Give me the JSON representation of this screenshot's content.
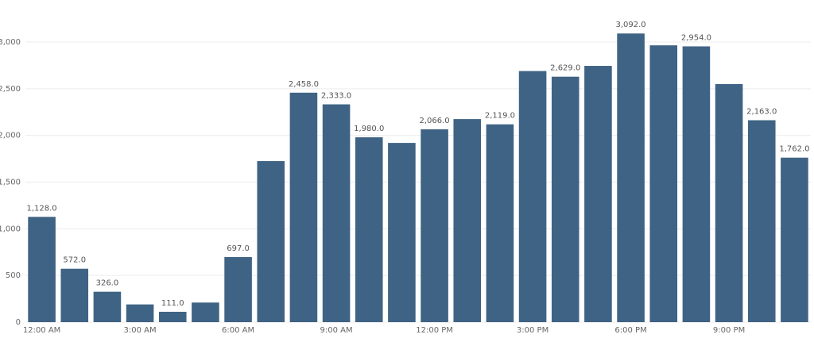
{
  "chart_data": {
    "type": "bar",
    "categories": [
      "12:00 AM",
      null,
      null,
      "3:00 AM",
      null,
      null,
      "6:00 AM",
      null,
      null,
      "9:00 AM",
      null,
      null,
      "12:00 PM",
      null,
      null,
      "3:00 PM",
      null,
      null,
      "6:00 PM",
      null,
      null,
      "9:00 PM",
      null,
      null
    ],
    "values": [
      1128,
      572,
      326,
      190,
      111,
      210,
      697,
      1725,
      2458,
      2333,
      1980,
      1920,
      2066,
      2175,
      2119,
      2690,
      2629,
      2745,
      3092,
      2965,
      2954,
      2550,
      2163,
      1762
    ],
    "value_labels": [
      "1,128.0",
      "572.0",
      "326.0",
      null,
      "111.0",
      null,
      "697.0",
      null,
      "2,458.0",
      "2,333.0",
      "1,980.0",
      null,
      "2,066.0",
      null,
      "2,119.0",
      null,
      "2,629.0",
      null,
      "3,092.0",
      null,
      "2,954.0",
      null,
      "2,163.0",
      "1,762.0"
    ],
    "color": "#3f6384",
    "ylim": [
      0,
      3200
    ],
    "yticks": [
      0,
      500,
      {
        "value": 1000,
        "label": "1,000"
      },
      {
        "value": 1500,
        "label": "1,500"
      },
      {
        "value": 2000,
        "label": "2,000"
      },
      {
        "value": 2500,
        "label": "2,500"
      },
      {
        "value": 3000,
        "label": "3,000"
      }
    ],
    "grid": true
  }
}
